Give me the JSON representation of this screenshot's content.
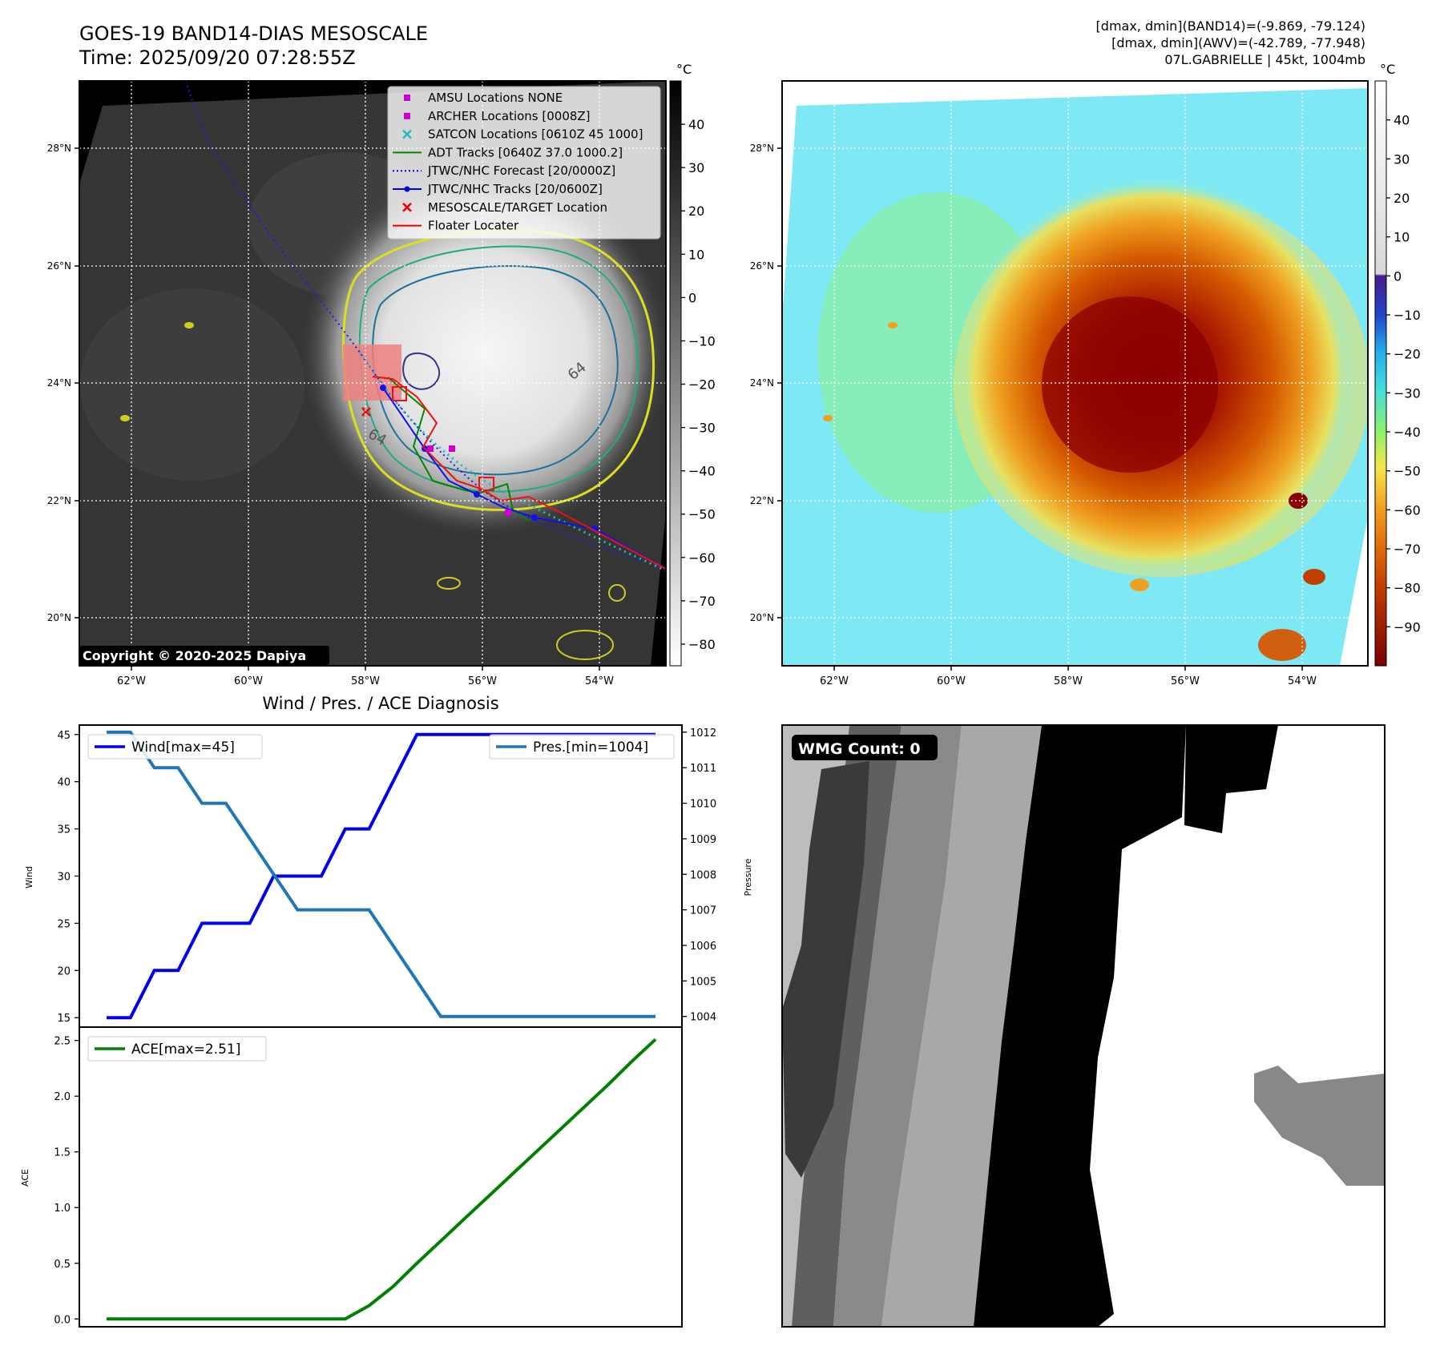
{
  "header": {
    "title_line1": "GOES-19 BAND14-DIAS MESOSCALE",
    "title_line2": "Time: 2025/09/20 07:28:55Z",
    "info_line1": "[dmax, dmin](BAND14)=(-9.869, -79.124)",
    "info_line2": "[dmax, dmin](AWV)=(-42.789, -77.948)",
    "info_line3": "07L.GABRIELLE | 45kt, 1004mb"
  },
  "map": {
    "lon_ticks": [
      "62°W",
      "60°W",
      "58°W",
      "56°W",
      "54°W"
    ],
    "lat_ticks": [
      "28°N",
      "26°N",
      "24°N",
      "22°N",
      "20°N"
    ],
    "copyright": "Copyright © 2020-2025 Dapiya",
    "contour_label": "64",
    "legend": [
      {
        "label": "AMSU Locations NONE",
        "color": "#cc00cc",
        "marker": "square"
      },
      {
        "label": "ARCHER Locations [0008Z]",
        "color": "#cc00cc",
        "marker": "square"
      },
      {
        "label": "SATCON Locations [0610Z 45 1000]",
        "color": "#22bbbb",
        "marker": "x"
      },
      {
        "label": "ADT Tracks [0640Z 37.0 1000.2]",
        "color": "#008800",
        "marker": "line"
      },
      {
        "label": "JTWC/NHC Forecast [20/0000Z]",
        "color": "#0000ee",
        "marker": "dotted"
      },
      {
        "label": "JTWC/NHC Tracks [20/0600Z]",
        "color": "#0000ee",
        "marker": "line-dot"
      },
      {
        "label": "MESOSCALE/TARGET Location",
        "color": "#ee0000",
        "marker": "x"
      },
      {
        "label": "Floater Locater",
        "color": "#ee0000",
        "marker": "line"
      }
    ]
  },
  "colorbar1": {
    "unit": "°C",
    "ticks": [
      "40",
      "30",
      "20",
      "10",
      "0",
      "−10",
      "−20",
      "−30",
      "−40",
      "−50",
      "−60",
      "−70",
      "−80"
    ],
    "range": [
      -85,
      50
    ]
  },
  "colorbar2": {
    "unit": "°C",
    "ticks": [
      "40",
      "30",
      "20",
      "10",
      "0",
      "−10",
      "−20",
      "−30",
      "−40",
      "−50",
      "−60",
      "−70",
      "−80",
      "−90"
    ],
    "range": [
      -100,
      50
    ]
  },
  "wmg": {
    "label": "WMG Count: 0"
  },
  "chart_data": [
    {
      "type": "line",
      "title": "Wind / Pres. / ACE Diagnosis",
      "ylabel": "Wind",
      "ylabel_right": "Pressure",
      "ylim": [
        14,
        46
      ],
      "ylim_right": [
        1003.7,
        1012.2
      ],
      "yticks": [
        15,
        20,
        25,
        30,
        35,
        40,
        45
      ],
      "yticks_right": [
        1004,
        1005,
        1006,
        1007,
        1008,
        1009,
        1010,
        1011,
        1012
      ],
      "grid": false,
      "series": [
        {
          "name": "Wind[max=45]",
          "axis": "left",
          "color": "#0000ee",
          "legend_position": "upper-left",
          "values": [
            15,
            15,
            20,
            20,
            25,
            25,
            25,
            30,
            30,
            30,
            35,
            35,
            40,
            45,
            45,
            45,
            45,
            45,
            45,
            45,
            45,
            45,
            45,
            45
          ]
        },
        {
          "name": "Pres.[min=1004]",
          "axis": "right",
          "color": "#1f77b4",
          "legend_position": "upper-right",
          "values": [
            1012,
            1012,
            1011,
            1011,
            1010,
            1010,
            1009,
            1008,
            1007,
            1007,
            1007,
            1007,
            1006,
            1005,
            1004,
            1004,
            1004,
            1004,
            1004,
            1004,
            1004,
            1004,
            1004,
            1004
          ]
        }
      ]
    },
    {
      "type": "line",
      "ylabel": "ACE",
      "ylim": [
        -0.07,
        2.62
      ],
      "yticks": [
        "0.0",
        "0.5",
        "1.0",
        "1.5",
        "2.0",
        "2.5"
      ],
      "grid": false,
      "series": [
        {
          "name": "ACE[max=2.51]",
          "color": "#008000",
          "legend_position": "upper-left",
          "values": [
            0,
            0,
            0,
            0,
            0,
            0,
            0,
            0,
            0,
            0,
            0,
            0.12,
            0.29,
            0.5,
            0.7,
            0.9,
            1.1,
            1.3,
            1.5,
            1.7,
            1.9,
            2.1,
            2.31,
            2.51
          ]
        }
      ]
    }
  ]
}
